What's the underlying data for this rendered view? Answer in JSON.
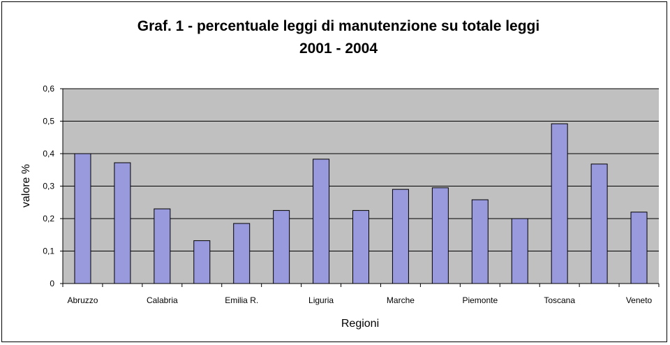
{
  "chart_data": {
    "type": "bar",
    "title": "Graf. 1 -  percentuale leggi di manutenzione su totale leggi",
    "subtitle": "2001 - 2004",
    "xlabel": "Regioni",
    "ylabel": "valore %",
    "ylim": [
      0,
      0.6
    ],
    "yticks": [
      "0",
      "0,1",
      "0,2",
      "0,3",
      "0,4",
      "0,5",
      "0,6"
    ],
    "categories": [
      "Abruzzo",
      "",
      "Calabria",
      "",
      "Emilia R.",
      "",
      "Liguria",
      "",
      "Marche",
      "",
      "Piemonte",
      "",
      "Toscana",
      "",
      "Veneto"
    ],
    "values": [
      0.4,
      0.372,
      0.23,
      0.132,
      0.185,
      0.225,
      0.383,
      0.225,
      0.29,
      0.295,
      0.258,
      0.2,
      0.492,
      0.368,
      0.22
    ],
    "grid": true,
    "colors": {
      "bar_fill": "#9999dd",
      "bar_stroke": "#000000",
      "plot_bg": "#c0c0c0",
      "gridline": "#000000"
    }
  }
}
